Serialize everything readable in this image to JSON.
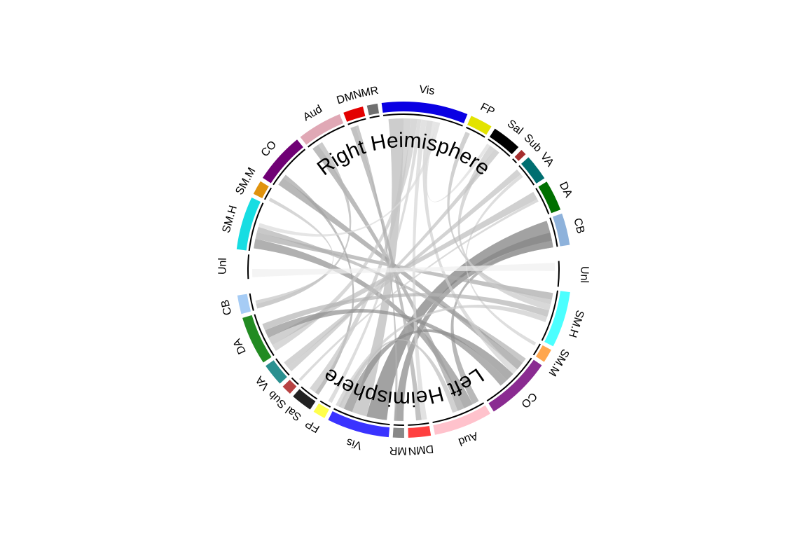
{
  "chart_data": {
    "type": "chord",
    "right_title": "Right Heimisphere",
    "left_title": "Left Heimisphere",
    "sectors": [
      {
        "id": "R-Unl",
        "label": "Unl",
        "hemisphere": "right",
        "size": 2.2,
        "color": "#FFFFFF"
      },
      {
        "id": "R-SM.H",
        "label": "SM.H",
        "hemisphere": "right",
        "size": 4.5,
        "color": "#17DDE2"
      },
      {
        "id": "R-SM.M",
        "label": "SM.M",
        "hemisphere": "right",
        "size": 1.2,
        "color": "#E0930E"
      },
      {
        "id": "R-CO",
        "label": "CO",
        "hemisphere": "right",
        "size": 4.3,
        "color": "#700075"
      },
      {
        "id": "R-Aud",
        "label": "Aud",
        "hemisphere": "right",
        "size": 3.8,
        "color": "#E0A8B5"
      },
      {
        "id": "R-DMN",
        "label": "DMN",
        "hemisphere": "right",
        "size": 1.7,
        "color": "#E30000"
      },
      {
        "id": "R-MR",
        "label": "MR",
        "hemisphere": "right",
        "size": 0.9,
        "color": "#707070"
      },
      {
        "id": "R-Vis",
        "label": "Vis",
        "hemisphere": "right",
        "size": 7.3,
        "color": "#0A00E3"
      },
      {
        "id": "R-FP",
        "label": "FP",
        "hemisphere": "right",
        "size": 1.9,
        "color": "#E3E300"
      },
      {
        "id": "R-Sal",
        "label": "Sal",
        "hemisphere": "right",
        "size": 2.5,
        "color": "#000000"
      },
      {
        "id": "R-Sub",
        "label": "Sub",
        "hemisphere": "right",
        "size": 0.5,
        "color": "#A62F2F"
      },
      {
        "id": "R-VA",
        "label": "VA",
        "hemisphere": "right",
        "size": 2.2,
        "color": "#006E70"
      },
      {
        "id": "R-DA",
        "label": "DA",
        "hemisphere": "right",
        "size": 2.6,
        "color": "#007000"
      },
      {
        "id": "R-CB",
        "label": "CB",
        "hemisphere": "right",
        "size": 2.7,
        "color": "#8EB2DB"
      },
      {
        "id": "L-Unl",
        "label": "Unl",
        "hemisphere": "left",
        "size": 2.2,
        "color": "#FFFFFF"
      },
      {
        "id": "L-SM.H",
        "label": "SM.H",
        "hemisphere": "left",
        "size": 4.5,
        "color": "#4CFFFF"
      },
      {
        "id": "L-SM.M",
        "label": "SM.M",
        "hemisphere": "left",
        "size": 1.1,
        "color": "#FFA64D"
      },
      {
        "id": "L-CO",
        "label": "CO",
        "hemisphere": "left",
        "size": 5.3,
        "color": "#8A2B91"
      },
      {
        "id": "L-Aud",
        "label": "Aud",
        "hemisphere": "left",
        "size": 4.7,
        "color": "#FFC2CC"
      },
      {
        "id": "L-DMN",
        "label": "DMN",
        "hemisphere": "left",
        "size": 1.8,
        "color": "#FF4040"
      },
      {
        "id": "L-MR",
        "label": "MR",
        "hemisphere": "left",
        "size": 0.9,
        "color": "#888888"
      },
      {
        "id": "L-Vis",
        "label": "Vis",
        "hemisphere": "left",
        "size": 5.0,
        "color": "#3A33FF"
      },
      {
        "id": "L-FP",
        "label": "FP",
        "hemisphere": "left",
        "size": 1.0,
        "color": "#FFFF4D"
      },
      {
        "id": "L-Sal",
        "label": "Sal",
        "hemisphere": "left",
        "size": 1.7,
        "color": "#222222"
      },
      {
        "id": "L-Sub",
        "label": "Sub",
        "hemisphere": "left",
        "size": 0.8,
        "color": "#B84242"
      },
      {
        "id": "L-VA",
        "label": "VA",
        "hemisphere": "left",
        "size": 1.8,
        "color": "#2A9090"
      },
      {
        "id": "L-DA",
        "label": "DA",
        "hemisphere": "left",
        "size": 3.9,
        "color": "#228B22"
      },
      {
        "id": "L-CB",
        "label": "CB",
        "hemisphere": "left",
        "size": 1.5,
        "color": "#A6CCF5"
      }
    ],
    "links": [
      {
        "source": "R-CB",
        "target": "L-Vis",
        "value": 3.0,
        "shade": "#7A7A7A"
      },
      {
        "source": "R-CB",
        "target": "L-MR",
        "value": 2.2,
        "shade": "#858585"
      },
      {
        "source": "R-CB",
        "target": "L-Aud",
        "value": 1.0,
        "shade": "#9A9A9A"
      },
      {
        "source": "R-SM.H",
        "target": "L-Aud",
        "value": 1.4,
        "shade": "#8E8E8E"
      },
      {
        "source": "R-SM.H",
        "target": "L-SM.H",
        "value": 1.0,
        "shade": "#A8A8A8"
      },
      {
        "source": "R-SM.H",
        "target": "L-CO",
        "value": 0.8,
        "shade": "#B0B0B0"
      },
      {
        "source": "R-CO",
        "target": "L-CO",
        "value": 1.2,
        "shade": "#9A9A9A"
      },
      {
        "source": "R-CO",
        "target": "L-Sal",
        "value": 0.6,
        "shade": "#A3A3A3"
      },
      {
        "source": "R-Aud",
        "target": "L-Aud",
        "value": 1.0,
        "shade": "#A0A0A0"
      },
      {
        "source": "R-Aud",
        "target": "L-CB",
        "value": 0.7,
        "shade": "#B5B5B5"
      },
      {
        "source": "R-Vis",
        "target": "L-Vis",
        "value": 2.2,
        "shade": "#B8B8B8"
      },
      {
        "source": "R-Vis",
        "target": "L-Sal",
        "value": 1.0,
        "shade": "#C4C4C4"
      },
      {
        "source": "R-Vis",
        "target": "L-DA",
        "value": 1.0,
        "shade": "#C8C8C8"
      },
      {
        "source": "R-Vis",
        "target": "L-FP",
        "value": 0.6,
        "shade": "#CFCFCF"
      },
      {
        "source": "R-Vis",
        "target": "L-DMN",
        "value": 0.8,
        "shade": "#D5D5D5"
      },
      {
        "source": "R-Vis",
        "target": "L-CO",
        "value": 0.9,
        "shade": "#D0D0D0"
      },
      {
        "source": "R-Vis",
        "target": "R-Sal",
        "value": 0.5,
        "shade": "#DCDCDC"
      },
      {
        "source": "R-DMN",
        "target": "L-DMN",
        "value": 0.8,
        "shade": "#A8A8A8"
      },
      {
        "source": "R-DMN",
        "target": "L-MR",
        "value": 0.4,
        "shade": "#B0B0B0"
      },
      {
        "source": "R-FP",
        "target": "L-SM.H",
        "value": 0.7,
        "shade": "#BEBEBE"
      },
      {
        "source": "R-Sal",
        "target": "L-SM.H",
        "value": 0.9,
        "shade": "#C8C8C8"
      },
      {
        "source": "R-Sal",
        "target": "L-VA",
        "value": 0.8,
        "shade": "#C2C2C2"
      },
      {
        "source": "R-VA",
        "target": "L-VA",
        "value": 0.9,
        "shade": "#C0C0C0"
      },
      {
        "source": "R-VA",
        "target": "L-SM.M",
        "value": 0.5,
        "shade": "#D0D0D0"
      },
      {
        "source": "R-DA",
        "target": "L-DA",
        "value": 1.2,
        "shade": "#BCBCBC"
      },
      {
        "source": "R-DA",
        "target": "L-Sub",
        "value": 0.4,
        "shade": "#CCCCCC"
      },
      {
        "source": "R-SM.M",
        "target": "L-CB",
        "value": 0.5,
        "shade": "#C4C4C4"
      },
      {
        "source": "R-Unl",
        "target": "L-Unl",
        "value": 1.2,
        "shade": "#EFEFEF"
      },
      {
        "source": "R-SM.H",
        "target": "R-Vis",
        "value": 0.6,
        "shade": "#DADADA"
      },
      {
        "source": "L-CO",
        "target": "L-Vis",
        "value": 1.3,
        "shade": "#8A8A8A"
      },
      {
        "source": "L-CO",
        "target": "L-DA",
        "value": 1.2,
        "shade": "#8E8E8E"
      },
      {
        "source": "L-SM.H",
        "target": "L-DA",
        "value": 1.0,
        "shade": "#B3B3B3"
      },
      {
        "source": "L-Aud",
        "target": "L-Vis",
        "value": 0.8,
        "shade": "#BDBDBD"
      },
      {
        "source": "L-SM.H",
        "target": "L-Vis",
        "value": 0.8,
        "shade": "#CACACA"
      }
    ]
  }
}
